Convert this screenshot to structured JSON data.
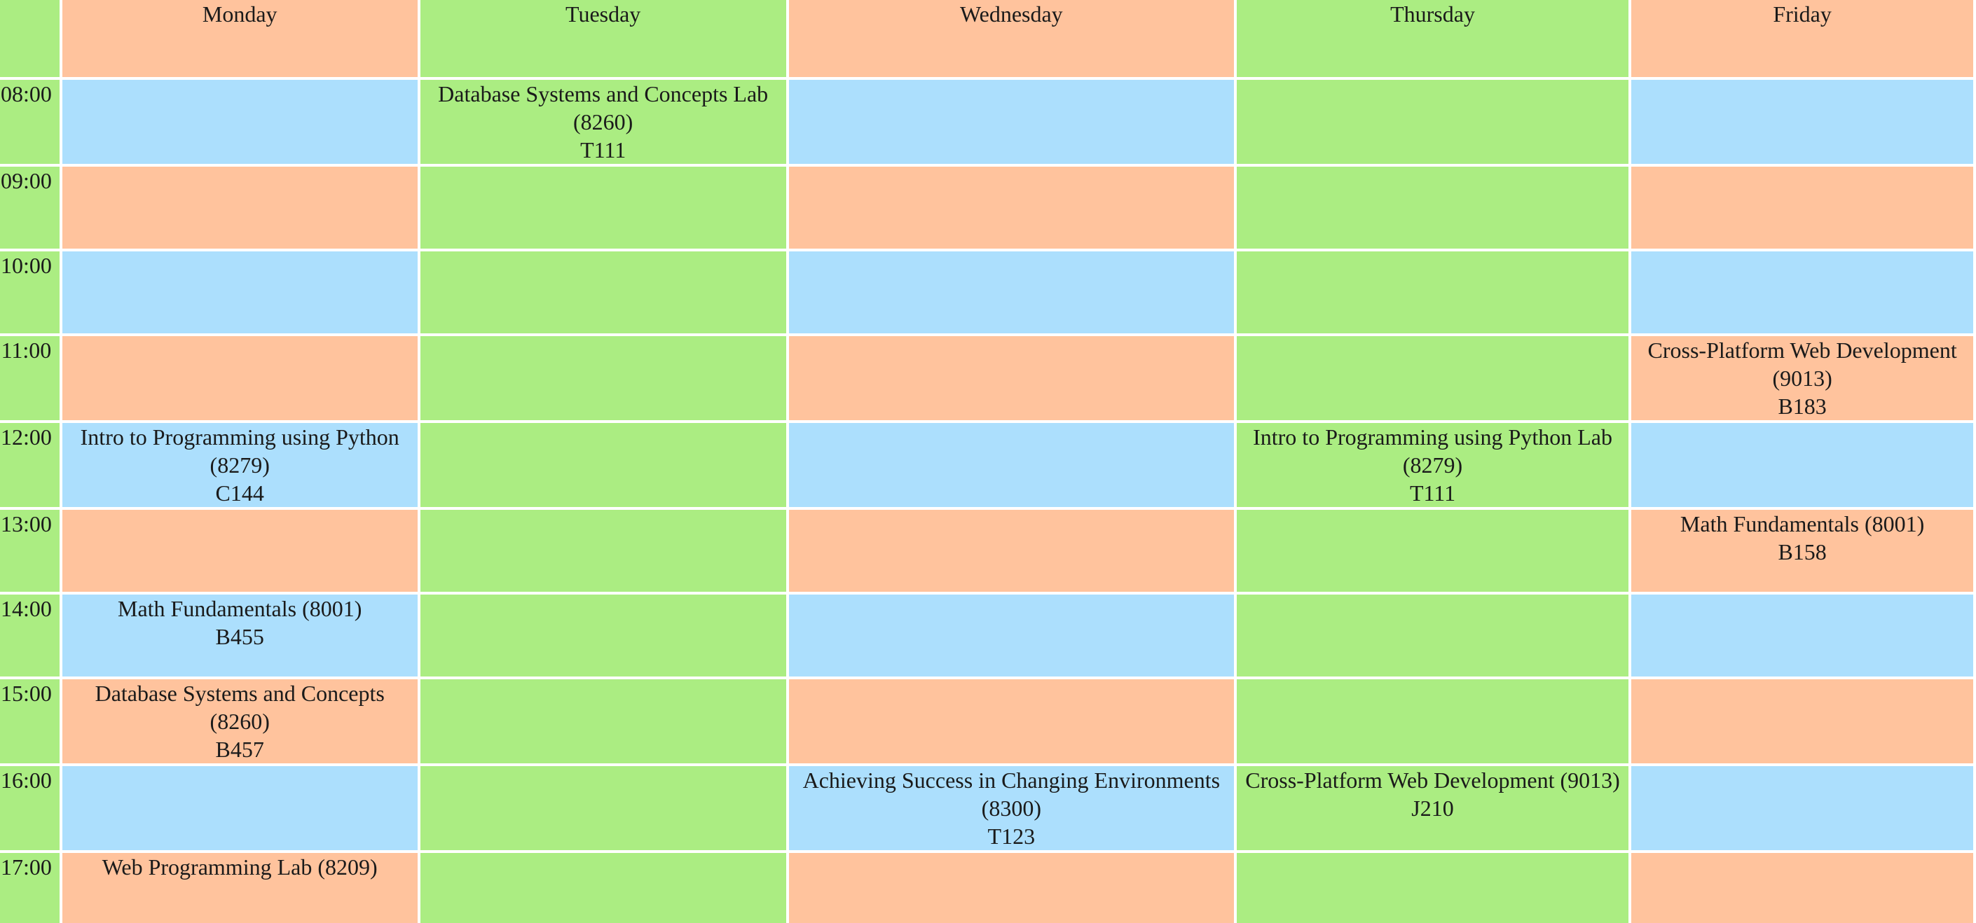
{
  "days": [
    {
      "label": "Monday"
    },
    {
      "label": "Tuesday"
    },
    {
      "label": "Wednesday"
    },
    {
      "label": "Thursday"
    },
    {
      "label": "Friday"
    }
  ],
  "colors": {
    "green": "#abed82",
    "peach": "#ffc39d",
    "blue": "#acdffd"
  },
  "rows": [
    {
      "time": "08:00",
      "cells": [
        {
          "title": "",
          "room": ""
        },
        {
          "title": "Database Systems and Concepts Lab (8260)",
          "room": "T111"
        },
        {
          "title": "",
          "room": ""
        },
        {
          "title": "",
          "room": ""
        },
        {
          "title": "",
          "room": ""
        }
      ]
    },
    {
      "time": "09:00",
      "cells": [
        {
          "title": "",
          "room": ""
        },
        {
          "title": "",
          "room": ""
        },
        {
          "title": "",
          "room": ""
        },
        {
          "title": "",
          "room": ""
        },
        {
          "title": "",
          "room": ""
        }
      ]
    },
    {
      "time": "10:00",
      "cells": [
        {
          "title": "",
          "room": ""
        },
        {
          "title": "",
          "room": ""
        },
        {
          "title": "",
          "room": ""
        },
        {
          "title": "",
          "room": ""
        },
        {
          "title": "",
          "room": ""
        }
      ]
    },
    {
      "time": "11:00",
      "cells": [
        {
          "title": "",
          "room": ""
        },
        {
          "title": "",
          "room": ""
        },
        {
          "title": "",
          "room": ""
        },
        {
          "title": "",
          "room": ""
        },
        {
          "title": "Cross-Platform Web Development (9013)",
          "room": "B183"
        }
      ]
    },
    {
      "time": "12:00",
      "cells": [
        {
          "title": "Intro to Programming using Python (8279)",
          "room": "C144"
        },
        {
          "title": "",
          "room": ""
        },
        {
          "title": "",
          "room": ""
        },
        {
          "title": "Intro to Programming using Python Lab (8279)",
          "room": "T111"
        },
        {
          "title": "",
          "room": ""
        }
      ]
    },
    {
      "time": "13:00",
      "cells": [
        {
          "title": "",
          "room": ""
        },
        {
          "title": "",
          "room": ""
        },
        {
          "title": "",
          "room": ""
        },
        {
          "title": "",
          "room": ""
        },
        {
          "title": "Math Fundamentals (8001)",
          "room": "B158"
        }
      ]
    },
    {
      "time": "14:00",
      "cells": [
        {
          "title": "Math Fundamentals (8001)",
          "room": "B455"
        },
        {
          "title": "",
          "room": ""
        },
        {
          "title": "",
          "room": ""
        },
        {
          "title": "",
          "room": ""
        },
        {
          "title": "",
          "room": ""
        }
      ]
    },
    {
      "time": "15:00",
      "cells": [
        {
          "title": "Database Systems and Concepts (8260)",
          "room": "B457"
        },
        {
          "title": "",
          "room": ""
        },
        {
          "title": "",
          "room": ""
        },
        {
          "title": "",
          "room": ""
        },
        {
          "title": "",
          "room": ""
        }
      ]
    },
    {
      "time": "16:00",
      "cells": [
        {
          "title": "",
          "room": ""
        },
        {
          "title": "",
          "room": ""
        },
        {
          "title": "Achieving Success in Changing Environments (8300)",
          "room": "T123"
        },
        {
          "title": "Cross-Platform Web Development (9013)",
          "room": "J210"
        },
        {
          "title": "",
          "room": ""
        }
      ]
    },
    {
      "time": "17:00",
      "cells": [
        {
          "title": "Web Programming Lab (8209)",
          "room": ""
        },
        {
          "title": "",
          "room": ""
        },
        {
          "title": "",
          "room": ""
        },
        {
          "title": "",
          "room": ""
        },
        {
          "title": "",
          "room": ""
        }
      ]
    }
  ]
}
